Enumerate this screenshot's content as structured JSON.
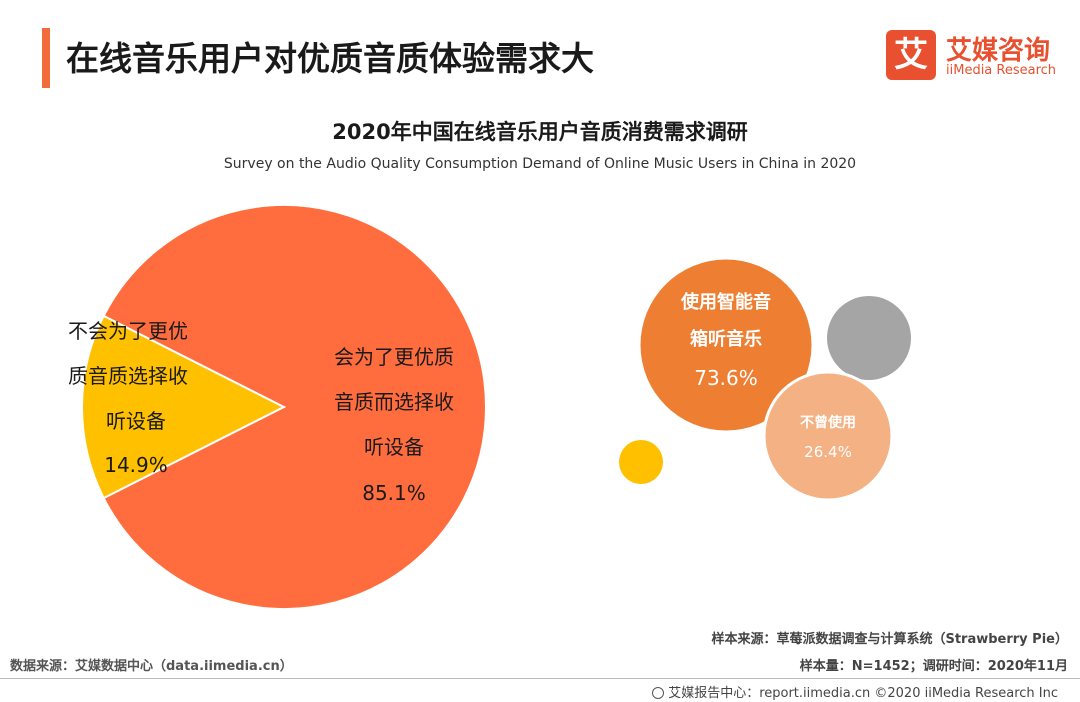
{
  "header": {
    "title": "在线音乐用户对优质音质体验需求大",
    "logo_mark": "艾",
    "logo_cn": "艾媒咨询",
    "logo_en": "iiMedia Research"
  },
  "chart_data": [
    {
      "type": "pie",
      "title": "2020年中国在线音乐用户音质消费需求调研",
      "subtitle": "Survey on the Audio Quality Consumption Demand of Online Music Users in China in 2020",
      "slices": [
        {
          "label_lines": [
            "会为了更优质",
            "音质而选择收",
            "听设备"
          ],
          "value": 85.1,
          "value_text": "85.1%",
          "color": "#ff6d3f"
        },
        {
          "label_lines": [
            "不会为了更优",
            "质音质选择收",
            "听设备"
          ],
          "value": 14.9,
          "value_text": "14.9%",
          "color": "#ffc000"
        }
      ]
    },
    {
      "type": "bubble",
      "bubbles": [
        {
          "label_lines": [
            "使用智能音",
            "箱听音乐"
          ],
          "value": 73.6,
          "value_text": "73.6%",
          "color": "#ee7e32"
        },
        {
          "label_lines": [
            "不曾使用"
          ],
          "value": 26.4,
          "value_text": "26.4%",
          "color": "#f4b183"
        }
      ],
      "decor_colors": [
        "#a5a5a5",
        "#ffc000"
      ]
    }
  ],
  "footer": {
    "source_left": "数据来源：艾媒数据中心（data.iimedia.cn）",
    "sample_source": "样本来源：草莓派数据调查与计算系统（Strawberry Pie）",
    "sample_info": "样本量：N=1452；调研时间：2020年11月",
    "copyright": "艾媒报告中心：report.iimedia.cn ©2020  iiMedia Research  Inc"
  }
}
